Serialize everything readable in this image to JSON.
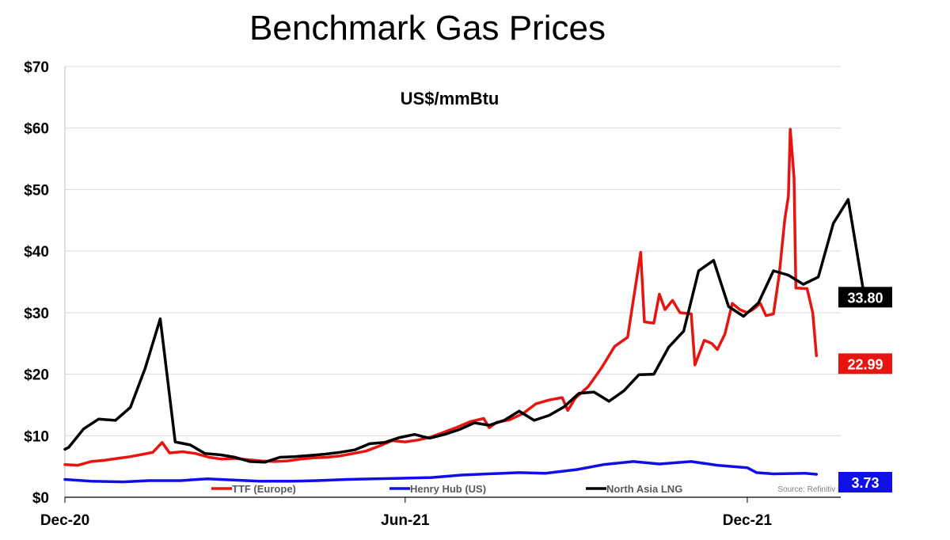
{
  "chart_data": {
    "type": "line",
    "title": "Benchmark Gas Prices",
    "subtitle": "US$/mmBtu",
    "source": "Source: Refinitiv Eikon",
    "x_tick_labels": [
      "Dec-20",
      "Jun-21",
      "Dec-21"
    ],
    "y_tick_labels": [
      "$0",
      "$10",
      "$20",
      "$30",
      "$40",
      "$50",
      "$60",
      "$70"
    ],
    "ylim": [
      0,
      70
    ],
    "y_ticks": [
      0,
      10,
      20,
      30,
      40,
      50,
      60,
      70
    ],
    "xlim": [
      "2020-12-01",
      "2022-01-20"
    ],
    "x_ticks": [
      "2020-12-01",
      "2021-06-01",
      "2021-12-01"
    ],
    "grid": "horizontal",
    "legend_position": "bottom",
    "series": [
      {
        "name": "TTF (Europe)",
        "color": "#e8140f",
        "end_label": "22.99",
        "points": [
          [
            "2020-12-01",
            5.3
          ],
          [
            "2020-12-08",
            5.2
          ],
          [
            "2020-12-15",
            5.8
          ],
          [
            "2020-12-22",
            6.0
          ],
          [
            "2020-12-29",
            6.3
          ],
          [
            "2021-01-05",
            6.6
          ],
          [
            "2021-01-12",
            7.0
          ],
          [
            "2021-01-17",
            7.3
          ],
          [
            "2021-01-22",
            8.9
          ],
          [
            "2021-01-26",
            7.2
          ],
          [
            "2021-02-02",
            7.4
          ],
          [
            "2021-02-09",
            7.1
          ],
          [
            "2021-02-16",
            6.5
          ],
          [
            "2021-02-23",
            6.2
          ],
          [
            "2021-03-02",
            6.3
          ],
          [
            "2021-03-09",
            6.1
          ],
          [
            "2021-03-16",
            5.9
          ],
          [
            "2021-03-23",
            5.8
          ],
          [
            "2021-03-30",
            5.9
          ],
          [
            "2021-04-06",
            6.2
          ],
          [
            "2021-04-13",
            6.4
          ],
          [
            "2021-04-20",
            6.5
          ],
          [
            "2021-04-27",
            6.7
          ],
          [
            "2021-05-04",
            7.1
          ],
          [
            "2021-05-11",
            7.5
          ],
          [
            "2021-05-18",
            8.3
          ],
          [
            "2021-05-25",
            9.2
          ],
          [
            "2021-06-01",
            9.0
          ],
          [
            "2021-06-08",
            9.3
          ],
          [
            "2021-06-15",
            9.8
          ],
          [
            "2021-06-22",
            10.6
          ],
          [
            "2021-06-29",
            11.4
          ],
          [
            "2021-07-06",
            12.3
          ],
          [
            "2021-07-13",
            12.8
          ],
          [
            "2021-07-16",
            11.3
          ],
          [
            "2021-07-20",
            12.2
          ],
          [
            "2021-07-27",
            12.6
          ],
          [
            "2021-08-03",
            13.6
          ],
          [
            "2021-08-10",
            15.2
          ],
          [
            "2021-08-17",
            15.8
          ],
          [
            "2021-08-24",
            16.2
          ],
          [
            "2021-08-27",
            14.1
          ],
          [
            "2021-08-31",
            16.1
          ],
          [
            "2021-09-07",
            18.0
          ],
          [
            "2021-09-14",
            21.0
          ],
          [
            "2021-09-21",
            24.5
          ],
          [
            "2021-09-28",
            26.0
          ],
          [
            "2021-10-05",
            39.8
          ],
          [
            "2021-10-07",
            28.5
          ],
          [
            "2021-10-12",
            28.3
          ],
          [
            "2021-10-15",
            33.0
          ],
          [
            "2021-10-18",
            30.5
          ],
          [
            "2021-10-22",
            32.0
          ],
          [
            "2021-10-26",
            30.0
          ],
          [
            "2021-11-01",
            29.8
          ],
          [
            "2021-11-03",
            21.5
          ],
          [
            "2021-11-08",
            25.5
          ],
          [
            "2021-11-12",
            25.0
          ],
          [
            "2021-11-15",
            24.0
          ],
          [
            "2021-11-19",
            26.5
          ],
          [
            "2021-11-23",
            31.5
          ],
          [
            "2021-11-27",
            30.5
          ],
          [
            "2021-12-01",
            30.0
          ],
          [
            "2021-12-04",
            30.5
          ],
          [
            "2021-12-08",
            31.5
          ],
          [
            "2021-12-11",
            29.5
          ],
          [
            "2021-12-15",
            29.8
          ],
          [
            "2021-12-18",
            36.0
          ],
          [
            "2021-12-21",
            45.0
          ],
          [
            "2021-12-23",
            49.0
          ],
          [
            "2021-12-24",
            59.8
          ],
          [
            "2021-12-26",
            52.0
          ],
          [
            "2021-12-27",
            34.0
          ],
          [
            "2022-01-02",
            33.9
          ],
          [
            "2022-01-05",
            30.0
          ],
          [
            "2022-01-07",
            22.99
          ]
        ]
      },
      {
        "name": "Henry Hub (US)",
        "color": "#1010e6",
        "end_label": "3.73",
        "points": [
          [
            "2020-12-01",
            2.9
          ],
          [
            "2020-12-15",
            2.6
          ],
          [
            "2021-01-01",
            2.5
          ],
          [
            "2021-01-15",
            2.7
          ],
          [
            "2021-02-01",
            2.7
          ],
          [
            "2021-02-15",
            3.0
          ],
          [
            "2021-03-01",
            2.8
          ],
          [
            "2021-03-15",
            2.6
          ],
          [
            "2021-04-01",
            2.6
          ],
          [
            "2021-04-15",
            2.7
          ],
          [
            "2021-05-01",
            2.9
          ],
          [
            "2021-05-15",
            3.0
          ],
          [
            "2021-06-01",
            3.1
          ],
          [
            "2021-06-15",
            3.2
          ],
          [
            "2021-07-01",
            3.6
          ],
          [
            "2021-07-15",
            3.8
          ],
          [
            "2021-08-01",
            4.0
          ],
          [
            "2021-08-15",
            3.9
          ],
          [
            "2021-09-01",
            4.5
          ],
          [
            "2021-09-15",
            5.3
          ],
          [
            "2021-10-01",
            5.8
          ],
          [
            "2021-10-15",
            5.4
          ],
          [
            "2021-11-01",
            5.8
          ],
          [
            "2021-11-15",
            5.2
          ],
          [
            "2021-12-01",
            4.8
          ],
          [
            "2021-12-06",
            4.0
          ],
          [
            "2021-12-15",
            3.8
          ],
          [
            "2022-01-01",
            3.9
          ],
          [
            "2022-01-07",
            3.73
          ]
        ]
      },
      {
        "name": "North Asia LNG",
        "color": "#000000",
        "end_label": "33.80",
        "points": [
          [
            "2020-12-01",
            7.8
          ],
          [
            "2020-12-03",
            8.1
          ],
          [
            "2020-12-11",
            11.1
          ],
          [
            "2020-12-19",
            12.7
          ],
          [
            "2020-12-28",
            12.5
          ],
          [
            "2021-01-05",
            14.6
          ],
          [
            "2021-01-13",
            21.0
          ],
          [
            "2021-01-21",
            29.0
          ],
          [
            "2021-01-29",
            9.0
          ],
          [
            "2021-02-06",
            8.5
          ],
          [
            "2021-02-14",
            7.1
          ],
          [
            "2021-02-22",
            6.9
          ],
          [
            "2021-03-02",
            6.5
          ],
          [
            "2021-03-10",
            5.8
          ],
          [
            "2021-03-18",
            5.7
          ],
          [
            "2021-03-26",
            6.5
          ],
          [
            "2021-04-03",
            6.6
          ],
          [
            "2021-04-11",
            6.8
          ],
          [
            "2021-04-19",
            7.0
          ],
          [
            "2021-04-27",
            7.3
          ],
          [
            "2021-05-05",
            7.7
          ],
          [
            "2021-05-13",
            8.7
          ],
          [
            "2021-05-21",
            8.9
          ],
          [
            "2021-05-29",
            9.7
          ],
          [
            "2021-06-06",
            10.2
          ],
          [
            "2021-06-14",
            9.6
          ],
          [
            "2021-06-22",
            10.2
          ],
          [
            "2021-06-30",
            11.0
          ],
          [
            "2021-07-08",
            12.1
          ],
          [
            "2021-07-16",
            11.7
          ],
          [
            "2021-07-24",
            12.5
          ],
          [
            "2021-08-01",
            14.0
          ],
          [
            "2021-08-09",
            12.5
          ],
          [
            "2021-08-17",
            13.3
          ],
          [
            "2021-08-25",
            14.7
          ],
          [
            "2021-09-02",
            16.9
          ],
          [
            "2021-09-10",
            17.1
          ],
          [
            "2021-09-18",
            15.6
          ],
          [
            "2021-09-26",
            17.3
          ],
          [
            "2021-10-04",
            19.9
          ],
          [
            "2021-10-12",
            20.0
          ],
          [
            "2021-10-20",
            24.4
          ],
          [
            "2021-10-28",
            27.0
          ],
          [
            "2021-11-05",
            36.8
          ],
          [
            "2021-11-13",
            38.5
          ],
          [
            "2021-11-21",
            31.0
          ],
          [
            "2021-11-29",
            29.4
          ],
          [
            "2021-12-07",
            31.6
          ],
          [
            "2021-12-15",
            36.8
          ],
          [
            "2021-12-23",
            36.1
          ],
          [
            "2021-12-31",
            34.6
          ],
          [
            "2022-01-08",
            35.8
          ],
          [
            "2022-01-16",
            44.5
          ],
          [
            "2022-01-24",
            48.4
          ],
          [
            "2022-02-01",
            33.8
          ]
        ]
      }
    ]
  }
}
